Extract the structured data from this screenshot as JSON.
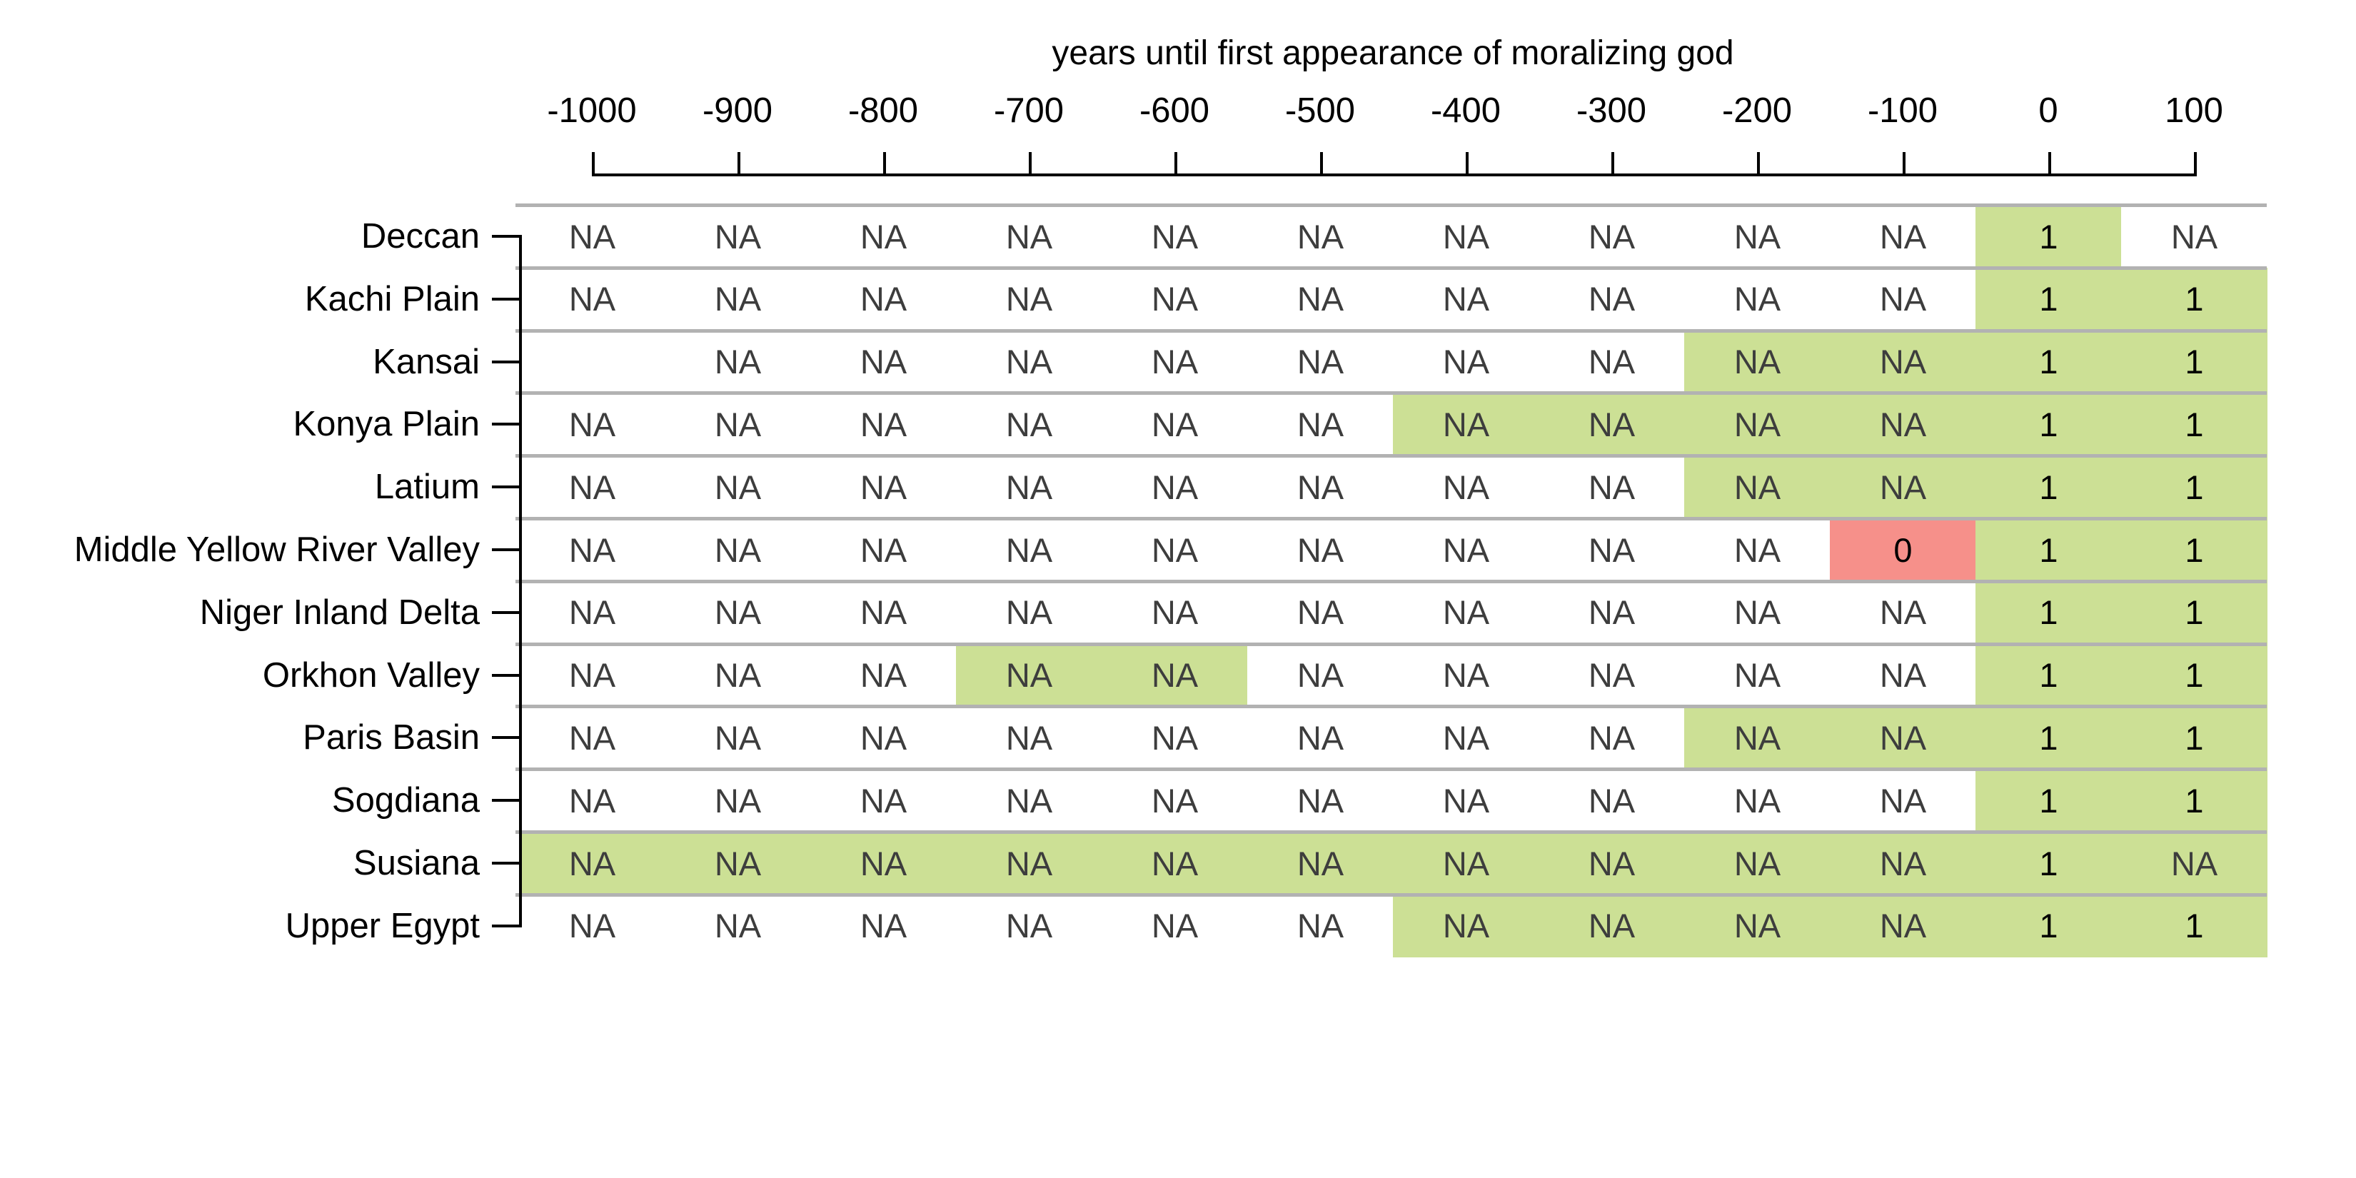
{
  "chart_data": {
    "type": "heatmap",
    "title": "years until first appearance of moralizing god",
    "x_axis": {
      "label": "years until first appearance of moralizing god",
      "tick_labels": [
        "-1000",
        "-900",
        "-800",
        "-700",
        "-600",
        "-500",
        "-400",
        "-300",
        "-200",
        "-100",
        "0",
        "100"
      ],
      "range": [
        -1000,
        100
      ],
      "grid": "off",
      "legend_position": "none"
    },
    "y_axis": {
      "tick_labels": [
        "Deccan",
        "Kachi Plain",
        "Kansai",
        "Konya Plain",
        "Latium",
        "Middle Yellow River Valley",
        "Niger Inland Delta",
        "Orkhon Valley",
        "Paris Basin",
        "Sogdiana",
        "Susiana",
        "Upper Egypt"
      ]
    },
    "cell_fill_legend": {
      "w": "white (no highlight)",
      "g": "green highlight",
      "r": "red highlight"
    },
    "rows": [
      {
        "label": "Deccan",
        "values": [
          "NA",
          "NA",
          "NA",
          "NA",
          "NA",
          "NA",
          "NA",
          "NA",
          "NA",
          "NA",
          "1",
          "NA"
        ],
        "fills": [
          "w",
          "w",
          "w",
          "w",
          "w",
          "w",
          "w",
          "w",
          "w",
          "w",
          "g",
          "w"
        ]
      },
      {
        "label": "Kachi Plain",
        "values": [
          "NA",
          "NA",
          "NA",
          "NA",
          "NA",
          "NA",
          "NA",
          "NA",
          "NA",
          "NA",
          "1",
          "1"
        ],
        "fills": [
          "w",
          "w",
          "w",
          "w",
          "w",
          "w",
          "w",
          "w",
          "w",
          "w",
          "g",
          "g"
        ]
      },
      {
        "label": "Kansai",
        "values": [
          "",
          "NA",
          "NA",
          "NA",
          "NA",
          "NA",
          "NA",
          "NA",
          "NA",
          "NA",
          "1",
          "1"
        ],
        "fills": [
          "w",
          "w",
          "w",
          "w",
          "w",
          "w",
          "w",
          "w",
          "g",
          "g",
          "g",
          "g"
        ]
      },
      {
        "label": "Konya Plain",
        "values": [
          "NA",
          "NA",
          "NA",
          "NA",
          "NA",
          "NA",
          "NA",
          "NA",
          "NA",
          "NA",
          "1",
          "1"
        ],
        "fills": [
          "w",
          "w",
          "w",
          "w",
          "w",
          "w",
          "g",
          "g",
          "g",
          "g",
          "g",
          "g"
        ]
      },
      {
        "label": "Latium",
        "values": [
          "NA",
          "NA",
          "NA",
          "NA",
          "NA",
          "NA",
          "NA",
          "NA",
          "NA",
          "NA",
          "1",
          "1"
        ],
        "fills": [
          "w",
          "w",
          "w",
          "w",
          "w",
          "w",
          "w",
          "w",
          "g",
          "g",
          "g",
          "g"
        ]
      },
      {
        "label": "Middle Yellow River Valley",
        "values": [
          "NA",
          "NA",
          "NA",
          "NA",
          "NA",
          "NA",
          "NA",
          "NA",
          "NA",
          "0",
          "1",
          "1"
        ],
        "fills": [
          "w",
          "w",
          "w",
          "w",
          "w",
          "w",
          "w",
          "w",
          "w",
          "r",
          "g",
          "g"
        ]
      },
      {
        "label": "Niger Inland Delta",
        "values": [
          "NA",
          "NA",
          "NA",
          "NA",
          "NA",
          "NA",
          "NA",
          "NA",
          "NA",
          "NA",
          "1",
          "1"
        ],
        "fills": [
          "w",
          "w",
          "w",
          "w",
          "w",
          "w",
          "w",
          "w",
          "w",
          "w",
          "g",
          "g"
        ]
      },
      {
        "label": "Orkhon Valley",
        "values": [
          "NA",
          "NA",
          "NA",
          "NA",
          "NA",
          "NA",
          "NA",
          "NA",
          "NA",
          "NA",
          "1",
          "1"
        ],
        "fills": [
          "w",
          "w",
          "w",
          "g",
          "g",
          "w",
          "w",
          "w",
          "w",
          "w",
          "g",
          "g"
        ]
      },
      {
        "label": "Paris Basin",
        "values": [
          "NA",
          "NA",
          "NA",
          "NA",
          "NA",
          "NA",
          "NA",
          "NA",
          "NA",
          "NA",
          "1",
          "1"
        ],
        "fills": [
          "w",
          "w",
          "w",
          "w",
          "w",
          "w",
          "w",
          "w",
          "g",
          "g",
          "g",
          "g"
        ]
      },
      {
        "label": "Sogdiana",
        "values": [
          "NA",
          "NA",
          "NA",
          "NA",
          "NA",
          "NA",
          "NA",
          "NA",
          "NA",
          "NA",
          "1",
          "1"
        ],
        "fills": [
          "w",
          "w",
          "w",
          "w",
          "w",
          "w",
          "w",
          "w",
          "w",
          "w",
          "g",
          "g"
        ]
      },
      {
        "label": "Susiana",
        "values": [
          "NA",
          "NA",
          "NA",
          "NA",
          "NA",
          "NA",
          "NA",
          "NA",
          "NA",
          "NA",
          "1",
          "NA"
        ],
        "fills": [
          "g",
          "g",
          "g",
          "g",
          "g",
          "g",
          "g",
          "g",
          "g",
          "g",
          "g",
          "g"
        ]
      },
      {
        "label": "Upper Egypt",
        "values": [
          "NA",
          "NA",
          "NA",
          "NA",
          "NA",
          "NA",
          "NA",
          "NA",
          "NA",
          "NA",
          "1",
          "1"
        ],
        "fills": [
          "w",
          "w",
          "w",
          "w",
          "w",
          "w",
          "g",
          "g",
          "g",
          "g",
          "g",
          "g"
        ]
      }
    ],
    "colors": {
      "highlight_green": "#cce095",
      "highlight_red": "#f6908a",
      "row_separator": "#b2b2b2",
      "na_text": "#3d3d3d",
      "value_text": "#000000",
      "axis": "#000000"
    }
  }
}
